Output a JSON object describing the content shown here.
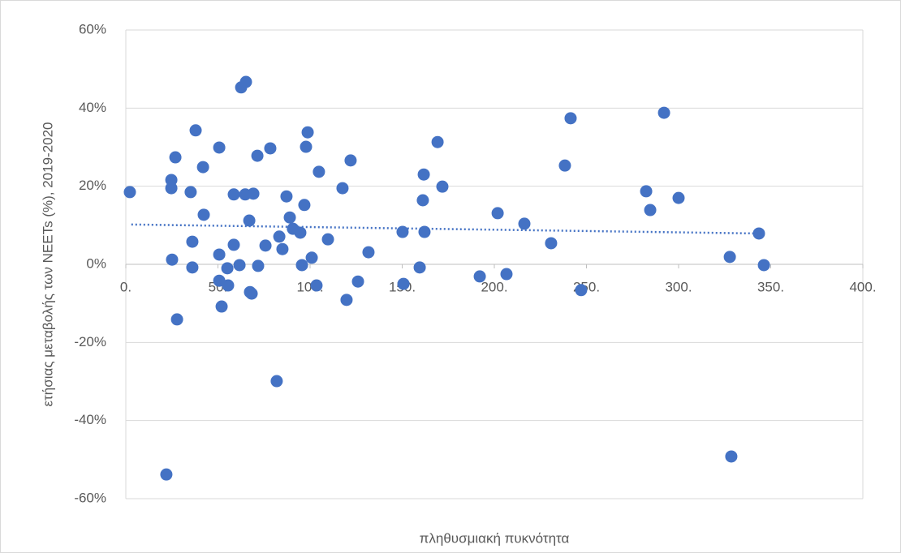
{
  "chart_data": {
    "type": "scatter",
    "x_label": "πληθυσμιακή πυκνότητα",
    "y_label": "ετήσιας μεταβολής των NEETs (%), 2019-2020",
    "color": "#4472c4",
    "grid": true,
    "xlim": [
      0,
      400
    ],
    "ylim": [
      -60,
      60
    ],
    "xticks": [
      {
        "value": 0,
        "label": "0."
      },
      {
        "value": 50,
        "label": "50."
      },
      {
        "value": 100,
        "label": "100."
      },
      {
        "value": 150,
        "label": "150."
      },
      {
        "value": 200,
        "label": "200."
      },
      {
        "value": 250,
        "label": "250."
      },
      {
        "value": 300,
        "label": "300."
      },
      {
        "value": 350,
        "label": "350."
      },
      {
        "value": 400,
        "label": "400."
      }
    ],
    "yticks": [
      {
        "value": -60,
        "label": "-60%"
      },
      {
        "value": -40,
        "label": "-40%"
      },
      {
        "value": -20,
        "label": "-20%"
      },
      {
        "value": 0,
        "label": "0%"
      },
      {
        "value": 20,
        "label": "20%"
      },
      {
        "value": 40,
        "label": "40%"
      },
      {
        "value": 60,
        "label": "60%"
      }
    ],
    "x": [
      2.2,
      24.7,
      24.7,
      25.1,
      26.9,
      27.8,
      22.0,
      35.2,
      36.1,
      36.1,
      37.9,
      41.9,
      42.3,
      50.7,
      50.7,
      50.7,
      52.0,
      55.1,
      55.5,
      58.6,
      58.6,
      61.7,
      62.6,
      64.8,
      65.2,
      67.0,
      67.4,
      68.3,
      69.2,
      71.4,
      71.8,
      75.8,
      78.4,
      81.9,
      83.3,
      85.0,
      87.2,
      89.0,
      90.7,
      94.7,
      95.6,
      96.9,
      97.8,
      98.7,
      100.9,
      103.5,
      104.8,
      109.7,
      117.6,
      119.8,
      122.0,
      126.0,
      131.7,
      150.2,
      150.7,
      159.5,
      161.2,
      161.7,
      162.1,
      169.2,
      171.8,
      192.1,
      201.8,
      206.6,
      216.3,
      230.8,
      238.3,
      241.4,
      247.1,
      282.4,
      284.6,
      300.0,
      292.1,
      327.8,
      328.6,
      343.6,
      346.3
    ],
    "values": [
      18.5,
      21.6,
      19.5,
      1.2,
      27.4,
      -14.1,
      -53.8,
      18.5,
      5.8,
      -0.8,
      34.3,
      24.9,
      12.7,
      29.9,
      2.5,
      -4.2,
      -10.8,
      -1.0,
      -5.4,
      17.9,
      5.0,
      -0.2,
      45.3,
      17.9,
      46.7,
      11.2,
      -7.1,
      -7.5,
      18.1,
      27.8,
      -0.4,
      4.8,
      29.7,
      -29.9,
      7.1,
      3.9,
      17.4,
      12.0,
      9.1,
      8.1,
      -0.2,
      15.2,
      30.1,
      33.8,
      1.7,
      -5.4,
      23.7,
      6.4,
      19.5,
      -9.1,
      26.6,
      -4.4,
      3.1,
      8.3,
      -5.0,
      -0.8,
      16.4,
      23.0,
      8.3,
      31.3,
      19.9,
      -3.1,
      13.1,
      -2.5,
      10.4,
      5.4,
      25.3,
      37.4,
      -6.6,
      18.7,
      13.9,
      17.0,
      38.8,
      1.9,
      -49.2,
      7.9,
      -0.2
    ],
    "trend": {
      "x": [
        3,
        343
      ],
      "values": [
        10.2,
        7.9
      ]
    }
  }
}
